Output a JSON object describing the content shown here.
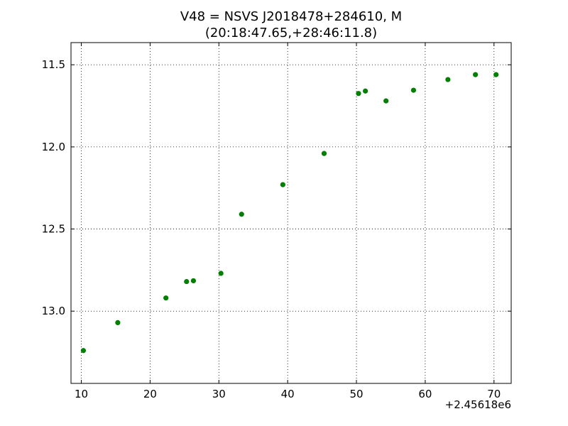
{
  "chart_data": {
    "type": "scatter",
    "title": [
      "V48 = NSVS J2018478+284610, M",
      "(20:18:47.65,+28:46:11.8)"
    ],
    "xlabel": "",
    "ylabel": "",
    "x_offset_label": "+2.45618e6",
    "xlim": [
      8.5,
      72.5
    ],
    "ylim": [
      13.44,
      11.365
    ],
    "y_inverted": true,
    "x_ticks": [
      10,
      20,
      30,
      40,
      50,
      60,
      70
    ],
    "x_tick_labels": [
      "10",
      "20",
      "30",
      "40",
      "50",
      "60",
      "70"
    ],
    "y_ticks": [
      11.5,
      12.0,
      12.5,
      13.0
    ],
    "y_tick_labels": [
      "11.5",
      "12.0",
      "12.5",
      "13.0"
    ],
    "grid": true,
    "legend": "none",
    "marker_color": "#007f00",
    "points": [
      {
        "x": 10.3,
        "y": 13.24
      },
      {
        "x": 15.3,
        "y": 13.07
      },
      {
        "x": 22.3,
        "y": 12.92
      },
      {
        "x": 25.3,
        "y": 12.82
      },
      {
        "x": 26.3,
        "y": 12.815
      },
      {
        "x": 30.3,
        "y": 12.77
      },
      {
        "x": 33.3,
        "y": 12.41
      },
      {
        "x": 39.3,
        "y": 12.23
      },
      {
        "x": 45.3,
        "y": 12.04
      },
      {
        "x": 50.3,
        "y": 11.675
      },
      {
        "x": 51.3,
        "y": 11.66
      },
      {
        "x": 54.3,
        "y": 11.72
      },
      {
        "x": 58.3,
        "y": 11.655
      },
      {
        "x": 63.3,
        "y": 11.59
      },
      {
        "x": 67.3,
        "y": 11.56
      },
      {
        "x": 70.3,
        "y": 11.56
      }
    ]
  }
}
